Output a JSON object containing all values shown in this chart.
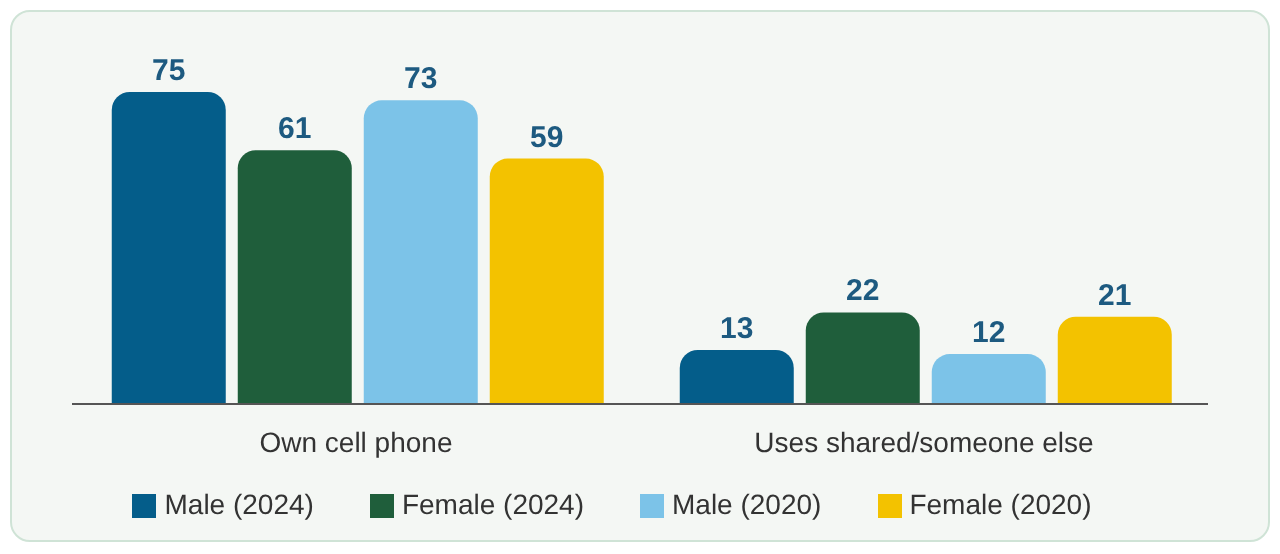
{
  "chart_data": {
    "type": "bar",
    "categories": [
      "Own cell phone",
      "Uses shared/someone else"
    ],
    "series": [
      {
        "name": "Male (2024)",
        "color": "#045d8a",
        "values": [
          75,
          13
        ]
      },
      {
        "name": "Female (2024)",
        "color": "#1f5e3b",
        "values": [
          61,
          22
        ]
      },
      {
        "name": "Male (2020)",
        "color": "#7cc3e8",
        "values": [
          73,
          12
        ]
      },
      {
        "name": "Female (2020)",
        "color": "#f3c200",
        "values": [
          59,
          21
        ]
      }
    ],
    "data_labels": true,
    "legend": "bottom",
    "grid": false
  }
}
